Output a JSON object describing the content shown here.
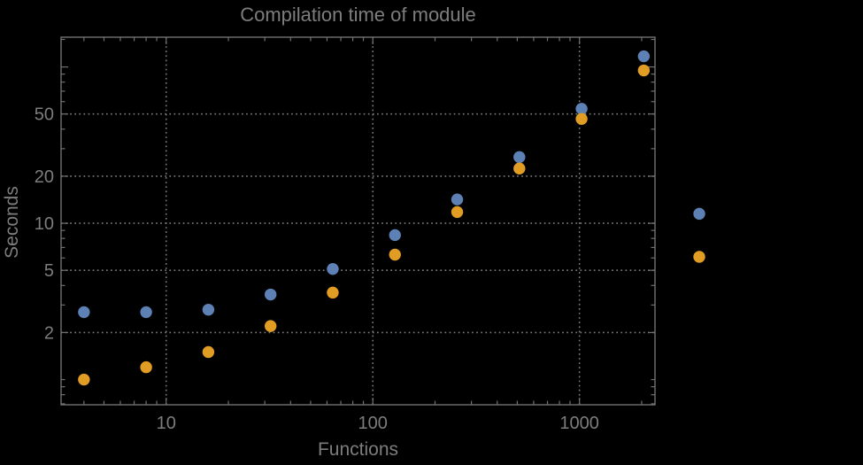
{
  "figure": {
    "background": "#000000"
  },
  "chart_data": {
    "type": "scatter",
    "title": "Compilation time of module",
    "xlabel": "Functions",
    "ylabel": "Seconds",
    "x_scale": "log",
    "y_scale": "log",
    "xlim": [
      3.1,
      2320
    ],
    "ylim": [
      0.69,
      155
    ],
    "grid": "dotted",
    "legend_position": "none",
    "x_ticks": [
      {
        "value": 10,
        "label": "10"
      },
      {
        "value": 100,
        "label": "100"
      },
      {
        "value": 1000,
        "label": "1000"
      }
    ],
    "y_ticks": [
      {
        "value": 2,
        "label": "2"
      },
      {
        "value": 5,
        "label": "5"
      },
      {
        "value": 10,
        "label": "10"
      },
      {
        "value": 20,
        "label": "20"
      },
      {
        "value": 50,
        "label": "50"
      }
    ],
    "y_unlabeled_major_ticks": [
      100
    ],
    "x_minor_ticks": [
      4,
      5,
      6,
      7,
      8,
      9,
      20,
      30,
      40,
      50,
      60,
      70,
      80,
      90,
      200,
      300,
      400,
      500,
      600,
      700,
      800,
      900,
      2000
    ],
    "y_minor_ticks": [
      0.7,
      0.8,
      0.9,
      1,
      3,
      4,
      6,
      7,
      8,
      9,
      30,
      40,
      60,
      70,
      80,
      90,
      150
    ],
    "gridline_x_values": [
      10,
      100,
      1000
    ],
    "gridline_y_values": [
      2,
      5,
      10,
      20,
      50
    ],
    "series": [
      {
        "name": "blue",
        "color": "#5E81B5",
        "points": [
          [
            4,
            2.7
          ],
          [
            8,
            2.7
          ],
          [
            16,
            2.8
          ],
          [
            32,
            3.5
          ],
          [
            64,
            5.1
          ],
          [
            128,
            8.4
          ],
          [
            256,
            14.2
          ],
          [
            512,
            26.5
          ],
          [
            1024,
            54
          ],
          [
            2048,
            117
          ],
          [
            3800,
            11.5
          ]
        ]
      },
      {
        "name": "orange",
        "color": "#E19C24",
        "points": [
          [
            4,
            1.0
          ],
          [
            8,
            1.2
          ],
          [
            16,
            1.5
          ],
          [
            32,
            2.2
          ],
          [
            64,
            3.6
          ],
          [
            128,
            6.3
          ],
          [
            256,
            11.8
          ],
          [
            512,
            22.4
          ],
          [
            1024,
            46.5
          ],
          [
            2048,
            95
          ],
          [
            3800,
            6.1
          ]
        ]
      }
    ],
    "style": {
      "frame_color": "#717171",
      "grid_color": "#7b7b7b",
      "text_color": "#7d7d7d",
      "point_radius": 6.7,
      "tick_label_font_size": 20
    }
  }
}
